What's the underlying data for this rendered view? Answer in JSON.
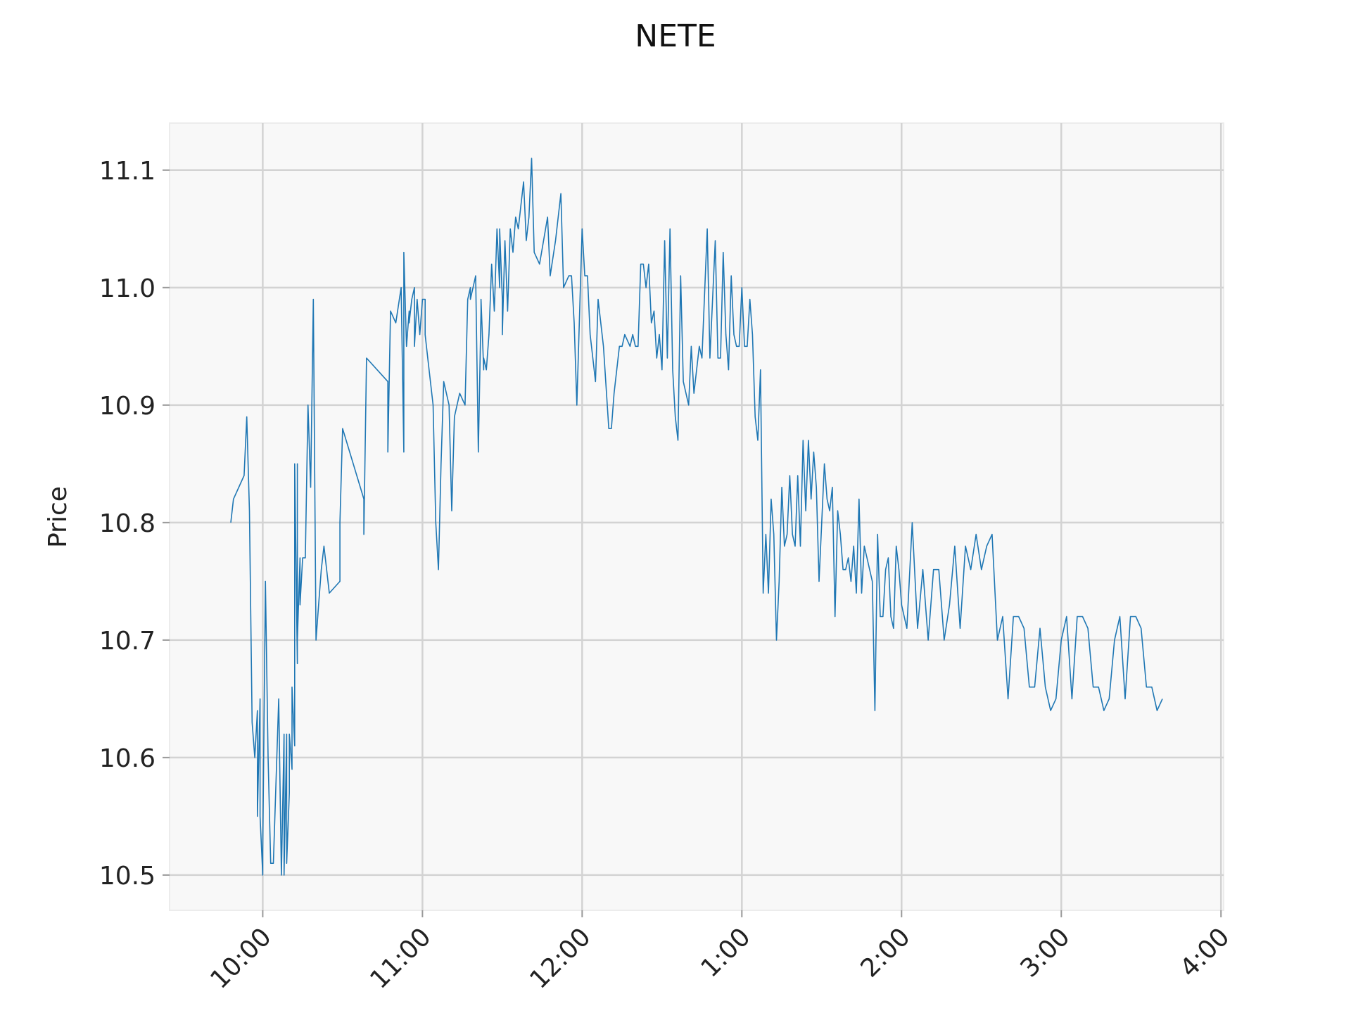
{
  "chart_data": {
    "type": "line",
    "title": "NETE",
    "xlabel": "",
    "ylabel": "Price",
    "x_tick_labels": [
      "10:00",
      "11:00",
      "12:00",
      "1:00",
      "2:00",
      "3:00",
      "4:00"
    ],
    "y_tick_labels": [
      "10.5",
      "10.6",
      "10.7",
      "10.8",
      "10.9",
      "11.0",
      "11.1"
    ],
    "y_ticks": [
      10.5,
      10.6,
      10.7,
      10.8,
      10.9,
      11.0,
      11.1
    ],
    "xlim": [
      "09:25",
      "16:01"
    ],
    "ylim": [
      10.47,
      11.14
    ],
    "grid": true,
    "legend": "none",
    "colors": {
      "line": "#1f77b4",
      "grid": "#d3d3d3",
      "plot_background": "#f8f8f8"
    },
    "series": [
      {
        "color": "#1f77b4",
        "x": [
          "09:48",
          "09:49",
          "09:53",
          "09:54",
          "09:55",
          "09:56",
          "09:57",
          "09:58",
          "09:58",
          "09:59",
          "09:59",
          "10:00",
          "10:00",
          "10:01",
          "10:02",
          "10:03",
          "10:04",
          "10:06",
          "10:07",
          "10:08",
          "10:08",
          "10:09",
          "10:09",
          "10:10",
          "10:10",
          "10:11",
          "10:11",
          "10:12",
          "10:12",
          "10:12",
          "10:13",
          "10:13",
          "10:13",
          "10:14",
          "10:14",
          "10:15",
          "10:16",
          "10:16",
          "10:17",
          "10:18",
          "10:19",
          "10:20",
          "10:20",
          "10:21",
          "10:22",
          "10:23",
          "10:25",
          "10:29",
          "10:29",
          "10:30",
          "10:38",
          "10:38",
          "10:39",
          "10:47",
          "10:47",
          "10:48",
          "10:50",
          "10:52",
          "10:53",
          "10:53",
          "10:54",
          "10:55",
          "10:55",
          "10:56",
          "10:57",
          "10:57",
          "10:58",
          "10:59",
          "11:00",
          "11:01",
          "11:01",
          "11:02",
          "11:04",
          "11:05",
          "11:06",
          "11:07",
          "11:08",
          "11:10",
          "11:11",
          "11:12",
          "11:14",
          "11:16",
          "11:17",
          "11:18",
          "11:18",
          "11:20",
          "11:21",
          "11:22",
          "11:22",
          "11:23",
          "11:23",
          "11:24",
          "11:25",
          "11:26",
          "11:27",
          "11:28",
          "11:29",
          "11:29",
          "11:30",
          "11:30",
          "11:31",
          "11:32",
          "11:33",
          "11:34",
          "11:35",
          "11:36",
          "11:37",
          "11:38",
          "11:39",
          "11:40",
          "11:41",
          "11:42",
          "11:44",
          "11:47",
          "11:48",
          "11:50",
          "11:52",
          "11:53",
          "11:55",
          "11:56",
          "11:57",
          "11:58",
          "12:00",
          "12:01",
          "12:02",
          "12:03",
          "12:05",
          "12:06",
          "12:08",
          "12:10",
          "12:11",
          "12:12",
          "12:14",
          "12:15",
          "12:16",
          "12:18",
          "12:19",
          "12:20",
          "12:21",
          "12:22",
          "12:23",
          "12:24",
          "12:25",
          "12:26",
          "12:27",
          "12:28",
          "12:29",
          "12:30",
          "12:31",
          "12:32",
          "12:33",
          "12:34",
          "12:35",
          "12:36",
          "12:37",
          "12:38",
          "12:40",
          "12:41",
          "12:42",
          "12:44",
          "12:45",
          "12:47",
          "12:48",
          "12:50",
          "12:51",
          "12:52",
          "12:53",
          "12:54",
          "12:55",
          "12:56",
          "12:57",
          "12:58",
          "12:59",
          "13:00",
          "13:01",
          "13:02",
          "13:03",
          "13:04",
          "13:05",
          "13:06",
          "13:07",
          "13:08",
          "13:09",
          "13:10",
          "13:11",
          "13:12",
          "13:13",
          "13:14",
          "13:15",
          "13:16",
          "13:17",
          "13:18",
          "13:19",
          "13:20",
          "13:21",
          "13:22",
          "13:23",
          "13:24",
          "13:25",
          "13:26",
          "13:27",
          "13:28",
          "13:29",
          "13:30",
          "13:31",
          "13:32",
          "13:33",
          "13:34",
          "13:35",
          "13:36",
          "13:37",
          "13:38",
          "13:39",
          "13:40",
          "13:41",
          "13:42",
          "13:43",
          "13:44",
          "13:45",
          "13:46",
          "13:47",
          "13:48",
          "13:49",
          "13:50",
          "13:51",
          "13:52",
          "13:53",
          "13:54",
          "13:55",
          "13:56",
          "13:57",
          "13:58",
          "13:59",
          "14:00",
          "14:02",
          "14:04",
          "14:06",
          "14:08",
          "14:10",
          "14:12",
          "14:14",
          "14:16",
          "14:18",
          "14:20",
          "14:22",
          "14:24",
          "14:26",
          "14:28",
          "14:30",
          "14:32",
          "14:34",
          "14:36",
          "14:38",
          "14:40",
          "14:42",
          "14:44",
          "14:46",
          "14:48",
          "14:50",
          "14:52",
          "14:54",
          "14:56",
          "14:58",
          "15:00",
          "15:02",
          "15:04",
          "15:06",
          "15:08",
          "15:10",
          "15:12",
          "15:14",
          "15:16",
          "15:18",
          "15:20",
          "15:22",
          "15:24",
          "15:26",
          "15:28",
          "15:30",
          "15:32",
          "15:34",
          "15:36",
          "15:38"
        ],
        "y": [
          10.8,
          10.82,
          10.84,
          10.89,
          10.81,
          10.63,
          10.6,
          10.64,
          10.55,
          10.65,
          10.55,
          10.5,
          10.52,
          10.75,
          10.6,
          10.51,
          10.51,
          10.65,
          10.5,
          10.62,
          10.5,
          10.62,
          10.51,
          10.57,
          10.62,
          10.59,
          10.66,
          10.61,
          10.68,
          10.85,
          10.68,
          10.85,
          10.7,
          10.77,
          10.73,
          10.77,
          10.77,
          10.77,
          10.9,
          10.83,
          10.99,
          10.7,
          10.7,
          10.73,
          10.76,
          10.78,
          10.74,
          10.75,
          10.8,
          10.88,
          10.82,
          10.79,
          10.94,
          10.92,
          10.86,
          10.98,
          10.97,
          11.0,
          10.86,
          11.03,
          10.95,
          10.98,
          10.97,
          10.99,
          11.0,
          10.95,
          10.99,
          10.96,
          10.99,
          10.99,
          10.96,
          10.94,
          10.9,
          10.8,
          10.76,
          10.85,
          10.92,
          10.9,
          10.81,
          10.89,
          10.91,
          10.9,
          10.99,
          11.0,
          10.99,
          11.01,
          10.86,
          10.98,
          10.99,
          10.93,
          10.94,
          10.93,
          10.96,
          11.02,
          10.98,
          11.05,
          11.0,
          11.05,
          10.99,
          10.96,
          11.04,
          10.98,
          11.05,
          11.03,
          11.06,
          11.05,
          11.07,
          11.09,
          11.04,
          11.06,
          11.11,
          11.03,
          11.02,
          11.06,
          11.01,
          11.04,
          11.08,
          11.0,
          11.01,
          11.01,
          10.97,
          10.9,
          11.05,
          11.01,
          11.01,
          10.96,
          10.92,
          10.99,
          10.95,
          10.88,
          10.88,
          10.91,
          10.95,
          10.95,
          10.96,
          10.95,
          10.96,
          10.95,
          10.95,
          11.02,
          11.02,
          11.0,
          11.02,
          10.97,
          10.98,
          10.94,
          10.96,
          10.93,
          11.04,
          10.94,
          11.05,
          10.93,
          10.89,
          10.87,
          11.01,
          10.92,
          10.9,
          10.95,
          10.91,
          10.95,
          10.94,
          11.05,
          10.94,
          11.04,
          10.94,
          10.94,
          11.03,
          10.96,
          10.93,
          11.01,
          10.96,
          10.95,
          10.95,
          11.0,
          10.95,
          10.95,
          10.99,
          10.96,
          10.89,
          10.87,
          10.93,
          10.74,
          10.79,
          10.74,
          10.82,
          10.79,
          10.7,
          10.75,
          10.83,
          10.78,
          10.79,
          10.84,
          10.79,
          10.78,
          10.84,
          10.78,
          10.87,
          10.81,
          10.87,
          10.82,
          10.86,
          10.83,
          10.75,
          10.8,
          10.85,
          10.82,
          10.81,
          10.83,
          10.72,
          10.81,
          10.79,
          10.76,
          10.76,
          10.77,
          10.75,
          10.78,
          10.74,
          10.82,
          10.74,
          10.78,
          10.77,
          10.76,
          10.75,
          10.64,
          10.79,
          10.72,
          10.72,
          10.76,
          10.77,
          10.72,
          10.71,
          10.78,
          10.76,
          10.73,
          10.71,
          10.8,
          10.71,
          10.76,
          10.7,
          10.76,
          10.76,
          10.7,
          10.73,
          10.78,
          10.71,
          10.78,
          10.76,
          10.79,
          10.76,
          10.78,
          10.79,
          10.7,
          10.72,
          10.65,
          10.72,
          10.72,
          10.71,
          10.66,
          10.66,
          10.71,
          10.66,
          10.64,
          10.65,
          10.7,
          10.72,
          10.65,
          10.72,
          10.72,
          10.71,
          10.66,
          10.66,
          10.64,
          10.65,
          10.7,
          10.72,
          10.65,
          10.72,
          10.72,
          10.71,
          10.66,
          10.66,
          10.64,
          10.65
        ]
      }
    ]
  }
}
